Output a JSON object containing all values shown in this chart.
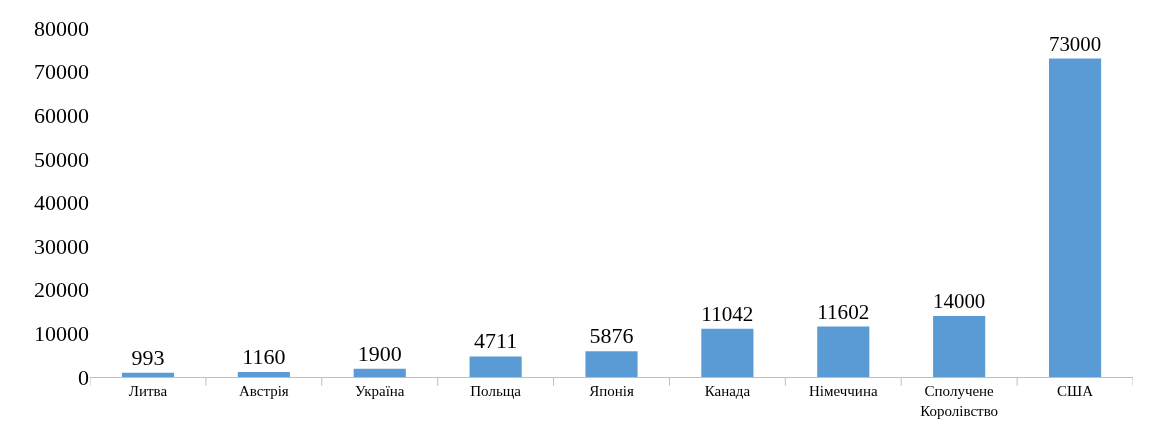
{
  "chart_data": {
    "type": "bar",
    "categories": [
      "Литва",
      "Австрія",
      "Україна",
      "Польща",
      "Японія",
      "Канада",
      "Німеччина",
      "Сполучене Королівство",
      "США"
    ],
    "values": [
      993,
      1160,
      1900,
      4711,
      5876,
      11042,
      11602,
      14000,
      73000
    ],
    "color": "#5b9bd5",
    "ylim": [
      0,
      80000
    ],
    "yticks": [
      0,
      10000,
      20000,
      30000,
      40000,
      50000,
      60000,
      70000,
      80000
    ],
    "data_labels": true
  }
}
